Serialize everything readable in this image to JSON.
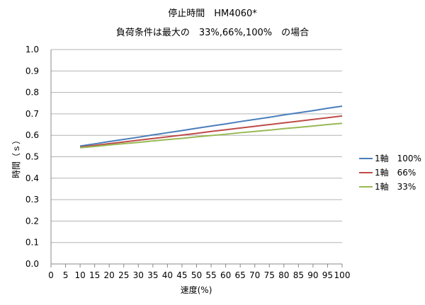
{
  "chart_data": {
    "type": "line",
    "title": "停止時間　HM4060*",
    "subtitle": "負荷条件は最大の　33%,66%,100%　の場合",
    "xlabel": "速度(%)",
    "ylabel": "時間（ｓ）",
    "xlim": [
      0,
      100
    ],
    "ylim": [
      0,
      1.0
    ],
    "x_ticks": [
      "0",
      "5",
      "10",
      "15",
      "20",
      "25",
      "30",
      "35",
      "40",
      "45",
      "50",
      "55",
      "60",
      "65",
      "70",
      "75",
      "80",
      "85",
      "90",
      "95",
      "100"
    ],
    "y_ticks": [
      "0.0",
      "0.1",
      "0.2",
      "0.3",
      "0.4",
      "0.5",
      "0.6",
      "0.7",
      "0.8",
      "0.9",
      "1.0"
    ],
    "grid": "horizontal",
    "legend_position": "right",
    "x": [
      10,
      15,
      20,
      25,
      30,
      35,
      40,
      45,
      50,
      55,
      60,
      65,
      70,
      75,
      80,
      85,
      90,
      95,
      100
    ],
    "series": [
      {
        "name": "1軸　100%",
        "color": "#4a7ebb",
        "values": [
          0.55,
          0.56,
          0.571,
          0.581,
          0.591,
          0.602,
          0.612,
          0.622,
          0.633,
          0.643,
          0.653,
          0.664,
          0.674,
          0.684,
          0.695,
          0.705,
          0.715,
          0.726,
          0.736
        ]
      },
      {
        "name": "1軸　66%",
        "color": "#be4b48",
        "values": [
          0.545,
          0.553,
          0.561,
          0.569,
          0.577,
          0.585,
          0.593,
          0.601,
          0.609,
          0.618,
          0.626,
          0.634,
          0.642,
          0.65,
          0.658,
          0.666,
          0.674,
          0.682,
          0.69
        ]
      },
      {
        "name": "1軸　33%",
        "color": "#98b954",
        "values": [
          0.542,
          0.548,
          0.555,
          0.561,
          0.567,
          0.574,
          0.58,
          0.586,
          0.593,
          0.599,
          0.605,
          0.612,
          0.618,
          0.624,
          0.631,
          0.637,
          0.643,
          0.65,
          0.656
        ]
      }
    ]
  }
}
